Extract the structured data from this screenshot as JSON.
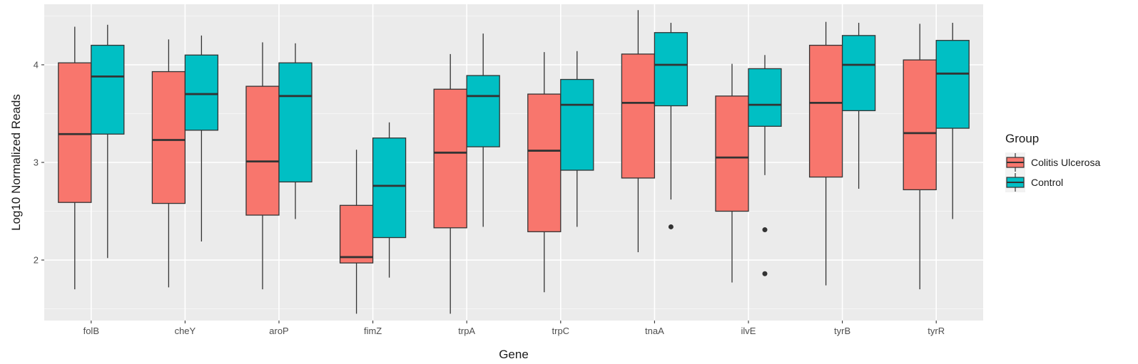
{
  "chart_data": {
    "type": "boxplot",
    "xlabel": "Gene",
    "ylabel": "Log10 Normalized Reads",
    "ylim": [
      1.38,
      4.62
    ],
    "yticks": [
      2,
      3,
      4
    ],
    "grid": true,
    "legend": {
      "title": "Group",
      "placement": "right",
      "entries": [
        {
          "name": "Colitis Ulcerosa",
          "color": "#F8766D"
        },
        {
          "name": "Control",
          "color": "#00BFC4"
        }
      ]
    },
    "categories": [
      "folB",
      "cheY",
      "aroP",
      "fimZ",
      "trpA",
      "trpC",
      "tnaA",
      "ilvE",
      "tyrB",
      "tyrR"
    ],
    "series": [
      {
        "name": "Colitis Ulcerosa",
        "color": "#F8766D",
        "boxes": [
          {
            "whisker_low": 1.7,
            "q1": 2.59,
            "median": 3.29,
            "q3": 4.02,
            "whisker_high": 4.39,
            "outliers": []
          },
          {
            "whisker_low": 1.72,
            "q1": 2.58,
            "median": 3.23,
            "q3": 3.93,
            "whisker_high": 4.26,
            "outliers": []
          },
          {
            "whisker_low": 1.7,
            "q1": 2.46,
            "median": 3.01,
            "q3": 3.78,
            "whisker_high": 4.23,
            "outliers": []
          },
          {
            "whisker_low": 1.45,
            "q1": 1.97,
            "median": 2.03,
            "q3": 2.56,
            "whisker_high": 3.13,
            "outliers": []
          },
          {
            "whisker_low": 1.45,
            "q1": 2.33,
            "median": 3.1,
            "q3": 3.75,
            "whisker_high": 4.11,
            "outliers": []
          },
          {
            "whisker_low": 1.67,
            "q1": 2.29,
            "median": 3.12,
            "q3": 3.7,
            "whisker_high": 4.13,
            "outliers": []
          },
          {
            "whisker_low": 2.08,
            "q1": 2.84,
            "median": 3.61,
            "q3": 4.11,
            "whisker_high": 4.56,
            "outliers": []
          },
          {
            "whisker_low": 1.77,
            "q1": 2.5,
            "median": 3.05,
            "q3": 3.68,
            "whisker_high": 4.01,
            "outliers": []
          },
          {
            "whisker_low": 1.74,
            "q1": 2.85,
            "median": 3.61,
            "q3": 4.2,
            "whisker_high": 4.44,
            "outliers": []
          },
          {
            "whisker_low": 1.7,
            "q1": 2.72,
            "median": 3.3,
            "q3": 4.05,
            "whisker_high": 4.42,
            "outliers": []
          }
        ]
      },
      {
        "name": "Control",
        "color": "#00BFC4",
        "boxes": [
          {
            "whisker_low": 2.02,
            "q1": 3.29,
            "median": 3.88,
            "q3": 4.2,
            "whisker_high": 4.41,
            "outliers": []
          },
          {
            "whisker_low": 2.19,
            "q1": 3.33,
            "median": 3.7,
            "q3": 4.1,
            "whisker_high": 4.3,
            "outliers": []
          },
          {
            "whisker_low": 2.42,
            "q1": 2.8,
            "median": 3.68,
            "q3": 4.02,
            "whisker_high": 4.22,
            "outliers": []
          },
          {
            "whisker_low": 1.82,
            "q1": 2.23,
            "median": 2.76,
            "q3": 3.25,
            "whisker_high": 3.41,
            "outliers": []
          },
          {
            "whisker_low": 2.34,
            "q1": 3.16,
            "median": 3.68,
            "q3": 3.89,
            "whisker_high": 4.32,
            "outliers": []
          },
          {
            "whisker_low": 2.34,
            "q1": 2.92,
            "median": 3.59,
            "q3": 3.85,
            "whisker_high": 4.14,
            "outliers": []
          },
          {
            "whisker_low": 2.62,
            "q1": 3.58,
            "median": 4.0,
            "q3": 4.33,
            "whisker_high": 4.43,
            "outliers": [
              2.34
            ]
          },
          {
            "whisker_low": 2.87,
            "q1": 3.37,
            "median": 3.59,
            "q3": 3.96,
            "whisker_high": 4.1,
            "outliers": [
              2.31,
              1.86
            ]
          },
          {
            "whisker_low": 2.73,
            "q1": 3.53,
            "median": 4.0,
            "q3": 4.3,
            "whisker_high": 4.43,
            "outliers": []
          },
          {
            "whisker_low": 2.42,
            "q1": 3.35,
            "median": 3.91,
            "q3": 4.25,
            "whisker_high": 4.43,
            "outliers": []
          }
        ]
      }
    ]
  }
}
